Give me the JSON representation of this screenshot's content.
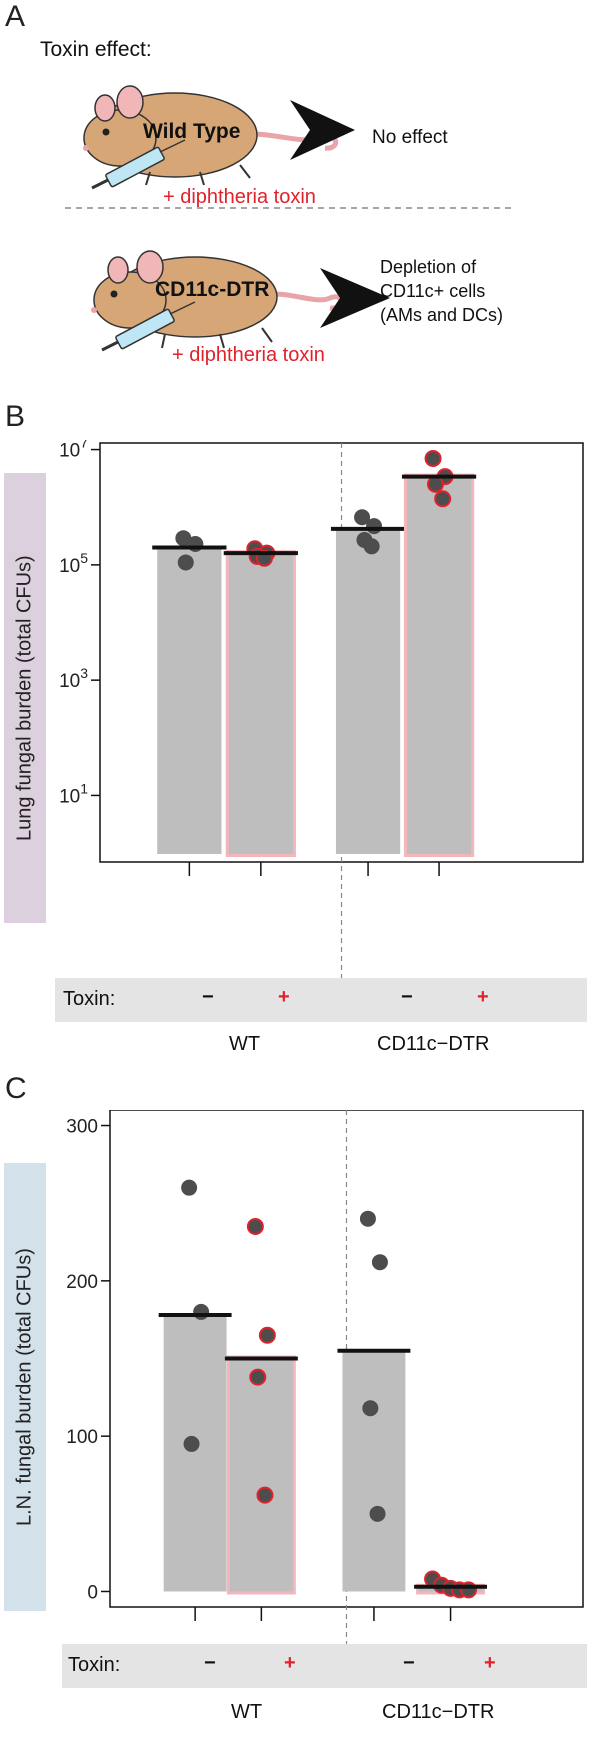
{
  "panelA": {
    "letter": "A",
    "heading": "Toxin effect:",
    "mouse1_label": "Wild Type",
    "mouse1_result": "No effect",
    "mouse1_treatment": "+ diphtheria toxin",
    "mouse2_label": "CD11c-DTR",
    "mouse2_result_lines": [
      "Depletion of",
      "CD11c+ cells",
      "(AMs and DCs)"
    ],
    "mouse2_treatment": "+ diphtheria toxin"
  },
  "panelB": {
    "letter": "B"
  },
  "panelC": {
    "letter": "C"
  },
  "colors": {
    "bar": "#bebebe",
    "toxin_outline": "#f3b6bb",
    "point": "#4d4d4d",
    "point_edge_toxin": "#e0222b",
    "mean": "#111111",
    "strip": "#e4e4e4"
  },
  "chart_data": [
    {
      "type": "bar",
      "scale": "log10",
      "ylabel": "Lung fungal burden (total CFUs)",
      "ylim": [
        0.7,
        13000000.0
      ],
      "yticks": [
        10,
        1000,
        100000,
        10000000
      ],
      "ytick_labels": [
        {
          "base": "10",
          "exp": "1"
        },
        {
          "base": "10",
          "exp": "3"
        },
        {
          "base": "10",
          "exp": "5"
        },
        {
          "base": "10",
          "exp": "7"
        }
      ],
      "toxin_label": "Toxin:",
      "group_labels": [
        "WT",
        "CD11c−DTR"
      ],
      "toxin_signs": [
        "−",
        "+",
        "−",
        "+"
      ],
      "bars": [
        {
          "group": "WT",
          "toxin": "−",
          "value": 200000,
          "points": [
            290000,
            230000,
            110000
          ]
        },
        {
          "group": "WT",
          "toxin": "+",
          "value": 160000,
          "points": [
            190000,
            160000,
            140000,
            130000
          ]
        },
        {
          "group": "CD11c−DTR",
          "toxin": "−",
          "value": 420000,
          "points": [
            670000,
            470000,
            270000,
            210000
          ]
        },
        {
          "group": "CD11c−DTR",
          "toxin": "+",
          "value": 3400000,
          "points": [
            7000000,
            3400000,
            2500000,
            1400000
          ]
        }
      ]
    },
    {
      "type": "bar",
      "scale": "linear",
      "ylabel": "L.N. fungal burden (total CFUs)",
      "ylim": [
        -10,
        310
      ],
      "yticks": [
        0,
        100,
        200,
        300
      ],
      "ytick_labels": [
        "0",
        "100",
        "200",
        "300"
      ],
      "toxin_label": "Toxin:",
      "group_labels": [
        "WT",
        "CD11c−DTR"
      ],
      "toxin_signs": [
        "−",
        "+",
        "−",
        "+"
      ],
      "bars": [
        {
          "group": "WT",
          "toxin": "−",
          "value": 178,
          "points": [
            260,
            180,
            95
          ]
        },
        {
          "group": "WT",
          "toxin": "+",
          "value": 150,
          "points": [
            235,
            165,
            138,
            62
          ]
        },
        {
          "group": "CD11c−DTR",
          "toxin": "−",
          "value": 155,
          "points": [
            240,
            212,
            118,
            50
          ]
        },
        {
          "group": "CD11c−DTR",
          "toxin": "+",
          "value": 3,
          "points": [
            8,
            4,
            2,
            1,
            1
          ]
        }
      ]
    }
  ]
}
